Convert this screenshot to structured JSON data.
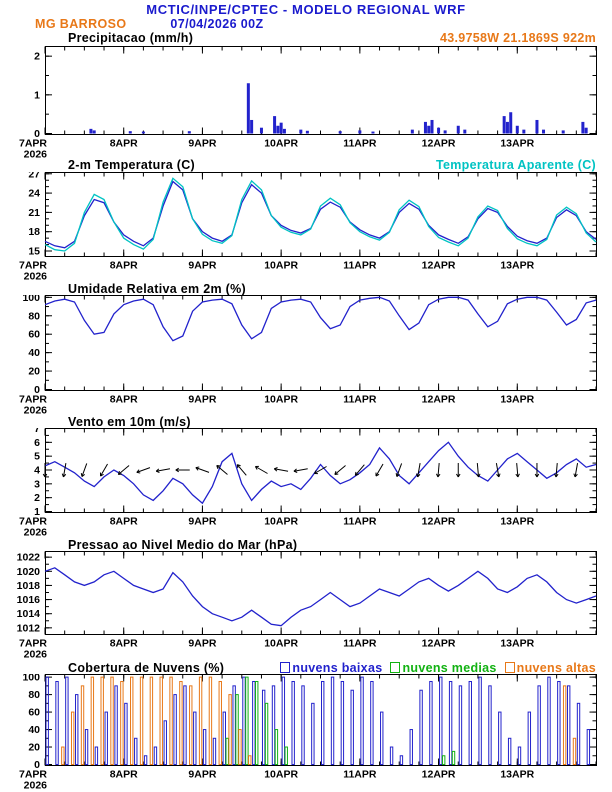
{
  "header": {
    "title": "MCTIC/INPE/CPTEC - MODELO REGIONAL WRF",
    "station": "MG BARROSO",
    "run": "07/04/2026 00Z",
    "coords": "43.9758W 21.1869S 922m"
  },
  "colors": {
    "blue": "#2222cc",
    "cyan": "#00c3c3",
    "orange": "#e87818",
    "green": "#12b212",
    "header_blue": "#1a1acd"
  },
  "x_axis": {
    "hours": 168,
    "minor_step": 6,
    "day_ticks": [
      0,
      24,
      48,
      72,
      96,
      120,
      144
    ],
    "labels": [
      "7APR",
      "8APR",
      "9APR",
      "10APR",
      "11APR",
      "12APR",
      "13APR"
    ],
    "year": "2026"
  },
  "chart_data": [
    {
      "type": "bar",
      "title": "Precipitacao (mm/h)",
      "ylabel": "mm/h",
      "ylim": [
        0,
        2.25
      ],
      "yticks": [
        0,
        1,
        2
      ],
      "yminor": 0.5,
      "color": "#2222cc",
      "bars": {
        "t": [
          14,
          15,
          26,
          30,
          44,
          62,
          63,
          66,
          70,
          71,
          72,
          73,
          78,
          80,
          90,
          96,
          100,
          112,
          116,
          117,
          118,
          120,
          122,
          126,
          128,
          140,
          141,
          142,
          144,
          146,
          150,
          152,
          158,
          164,
          165
        ],
        "v": [
          0.12,
          0.08,
          0.06,
          0.05,
          0.06,
          1.3,
          0.35,
          0.15,
          0.45,
          0.2,
          0.28,
          0.12,
          0.1,
          0.07,
          0.06,
          0.08,
          0.05,
          0.1,
          0.3,
          0.2,
          0.35,
          0.15,
          0.08,
          0.2,
          0.1,
          0.45,
          0.3,
          0.55,
          0.2,
          0.1,
          0.35,
          0.1,
          0.08,
          0.3,
          0.15
        ]
      }
    },
    {
      "type": "line",
      "title": "2-m Temperatura (C)",
      "legend": "Temperatura Aparente (C)",
      "ylim": [
        14.3,
        27.2
      ],
      "yticks": [
        15,
        18,
        21,
        24,
        27
      ],
      "yminor": 1,
      "x_step": 3,
      "series": [
        {
          "name": "2-m Temperatura",
          "color": "#2222cc",
          "values": [
            16.5,
            15.8,
            15.5,
            16.5,
            20.5,
            23.0,
            22.5,
            19.5,
            17.5,
            16.5,
            15.8,
            17.0,
            22.0,
            25.8,
            24.5,
            20.0,
            18.0,
            17.0,
            16.5,
            17.5,
            22.5,
            25.3,
            24.0,
            20.5,
            19.0,
            18.2,
            17.8,
            18.5,
            21.5,
            22.6,
            21.8,
            19.5,
            18.3,
            17.5,
            17.0,
            18.0,
            21.0,
            22.4,
            21.5,
            19.0,
            17.5,
            16.8,
            16.2,
            17.2,
            20.0,
            21.6,
            21.0,
            18.8,
            17.3,
            16.6,
            16.2,
            17.0,
            20.2,
            21.4,
            20.5,
            18.0,
            16.8
          ]
        },
        {
          "name": "Temperatura Aparente",
          "color": "#00c3c3",
          "values": [
            16.0,
            15.2,
            15.0,
            16.2,
            21.0,
            23.8,
            23.0,
            19.5,
            17.0,
            16.0,
            15.3,
            16.8,
            22.6,
            26.3,
            25.0,
            20.0,
            17.6,
            16.6,
            16.2,
            17.4,
            23.0,
            25.9,
            24.5,
            20.5,
            18.7,
            17.9,
            17.5,
            18.4,
            22.0,
            23.2,
            22.2,
            19.4,
            18.0,
            17.2,
            16.7,
            17.9,
            21.4,
            22.9,
            21.9,
            18.8,
            17.1,
            16.4,
            15.8,
            17.0,
            20.3,
            22.0,
            21.3,
            18.5,
            16.9,
            16.2,
            15.8,
            16.8,
            20.6,
            21.8,
            20.8,
            17.8,
            16.4
          ]
        }
      ]
    },
    {
      "type": "line",
      "title": "Umidade Relativa em 2m (%)",
      "ylim": [
        0,
        102
      ],
      "yticks": [
        0,
        20,
        40,
        60,
        80,
        100
      ],
      "yminor": 10,
      "x_step": 3,
      "series": [
        {
          "name": "Umidade Relativa",
          "color": "#2222cc",
          "values": [
            92,
            96,
            98,
            95,
            75,
            60,
            62,
            82,
            92,
            96,
            98,
            92,
            68,
            53,
            58,
            85,
            95,
            97,
            98,
            93,
            70,
            55,
            62,
            88,
            95,
            97,
            98,
            95,
            78,
            66,
            70,
            90,
            97,
            99,
            100,
            96,
            80,
            65,
            72,
            92,
            98,
            100,
            100,
            97,
            82,
            68,
            74,
            93,
            98,
            100,
            100,
            97,
            84,
            70,
            76,
            94,
            97
          ]
        }
      ]
    },
    {
      "type": "wind",
      "title": "Vento em 10m (m/s)",
      "ylim": [
        1,
        7
      ],
      "yticks": [
        1,
        2,
        3,
        4,
        5,
        6,
        7
      ],
      "yminor": 0.5,
      "x_step": 3,
      "series": [
        {
          "name": "Vento 10m",
          "color": "#2222cc",
          "values": [
            4.3,
            4.6,
            4.2,
            3.8,
            3.2,
            2.8,
            3.5,
            4.0,
            3.6,
            3.0,
            2.2,
            1.8,
            2.5,
            3.4,
            3.0,
            2.2,
            1.6,
            2.8,
            4.6,
            5.2,
            3.0,
            1.8,
            2.6,
            3.2,
            2.8,
            3.0,
            2.6,
            3.4,
            4.4,
            3.6,
            3.0,
            3.3,
            3.8,
            4.4,
            5.6,
            4.8,
            3.6,
            3.0,
            3.8,
            4.6,
            5.4,
            6.0,
            5.0,
            4.2,
            3.6,
            3.2,
            4.0,
            4.8,
            5.2,
            4.6,
            4.0,
            3.4,
            3.8,
            4.4,
            4.8,
            4.2,
            4.4
          ]
        }
      ],
      "barbs": {
        "at": 4.0,
        "t": [
          0,
          6,
          12,
          18,
          24,
          30,
          36,
          42,
          48,
          54,
          60,
          66,
          72,
          78,
          84,
          90,
          96,
          102,
          108,
          114,
          120,
          126,
          132,
          138,
          144,
          150,
          156,
          162
        ],
        "dir": [
          90,
          100,
          110,
          120,
          140,
          160,
          170,
          180,
          200,
          220,
          230,
          210,
          190,
          170,
          150,
          140,
          130,
          120,
          110,
          100,
          95,
          90,
          85,
          80,
          85,
          90,
          95,
          100
        ]
      }
    },
    {
      "type": "line",
      "title": "Pressao ao Nivel Medio do Mar (hPa)",
      "ylim": [
        1011.2,
        1022.8
      ],
      "yticks": [
        1012,
        1014,
        1016,
        1018,
        1020,
        1022
      ],
      "yminor": 1,
      "x_step": 3,
      "series": [
        {
          "name": "Pressao",
          "color": "#2222cc",
          "values": [
            1020.0,
            1020.5,
            1019.5,
            1018.5,
            1018.0,
            1018.5,
            1019.5,
            1020.0,
            1019.0,
            1018.0,
            1017.5,
            1017.0,
            1017.5,
            1019.8,
            1018.5,
            1016.5,
            1015.0,
            1014.0,
            1013.5,
            1013.0,
            1013.5,
            1014.5,
            1013.5,
            1012.5,
            1012.3,
            1013.5,
            1014.5,
            1015.0,
            1016.0,
            1017.0,
            1016.0,
            1015.0,
            1015.5,
            1016.5,
            1017.5,
            1017.0,
            1016.5,
            1017.5,
            1018.5,
            1019.0,
            1018.0,
            1017.2,
            1018.0,
            1019.0,
            1020.0,
            1019.0,
            1017.5,
            1017.0,
            1017.8,
            1019.0,
            1019.5,
            1018.5,
            1017.0,
            1016.0,
            1015.5,
            1016.0,
            1016.5
          ]
        }
      ]
    },
    {
      "type": "cloudbar",
      "title": "Cobertura de Nuvens (%)",
      "ylim": [
        0,
        103
      ],
      "yticks": [
        0,
        20,
        40,
        60,
        80,
        100
      ],
      "yminor": 10,
      "x_step": 3,
      "series": [
        {
          "name": "nuvens baixas",
          "color": "#2222cc",
          "values": [
            100,
            95,
            100,
            80,
            40,
            20,
            60,
            90,
            70,
            30,
            10,
            20,
            50,
            80,
            90,
            60,
            40,
            30,
            60,
            90,
            100,
            95,
            85,
            90,
            100,
            95,
            90,
            70,
            95,
            100,
            95,
            85,
            100,
            95,
            60,
            20,
            10,
            40,
            85,
            95,
            100,
            95,
            90,
            95,
            100,
            90,
            60,
            30,
            20,
            60,
            90,
            100,
            95,
            90,
            70,
            40,
            35
          ]
        },
        {
          "name": "nuvens medias",
          "color": "#12b212",
          "values": [
            0,
            0,
            0,
            0,
            0,
            0,
            0,
            0,
            0,
            0,
            0,
            0,
            0,
            0,
            0,
            0,
            0,
            0,
            30,
            80,
            100,
            95,
            70,
            40,
            20,
            0,
            0,
            0,
            0,
            0,
            0,
            0,
            0,
            0,
            0,
            0,
            0,
            0,
            0,
            0,
            10,
            15,
            0,
            0,
            0,
            0,
            0,
            0,
            0,
            0,
            0,
            0,
            0,
            0,
            0,
            0,
            0
          ]
        },
        {
          "name": "nuvens altas",
          "color": "#e87818",
          "values": [
            0,
            20,
            60,
            90,
            100,
            100,
            100,
            95,
            100,
            100,
            100,
            100,
            100,
            95,
            90,
            100,
            100,
            95,
            80,
            40,
            10,
            0,
            0,
            0,
            0,
            0,
            0,
            0,
            0,
            0,
            0,
            0,
            0,
            0,
            0,
            0,
            0,
            0,
            0,
            0,
            0,
            0,
            0,
            0,
            0,
            0,
            0,
            0,
            0,
            0,
            0,
            0,
            90,
            30,
            0,
            0,
            0
          ]
        }
      ]
    }
  ]
}
